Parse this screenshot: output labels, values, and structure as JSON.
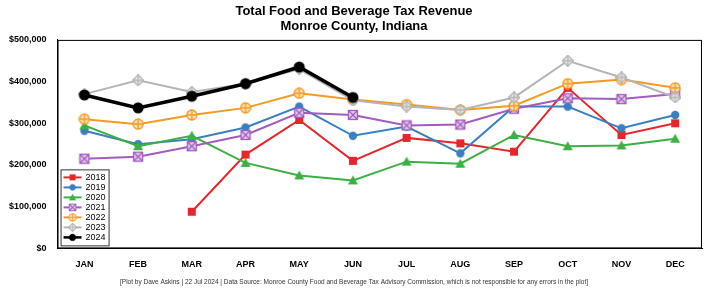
{
  "chart_data": {
    "type": "line",
    "title": "Total Food and Beverage Tax Revenue",
    "subtitle": "Monroe County, Indiana",
    "annotations": [
      "[Plot by Dave Askins | 22 Jul 2024 | Data Source: Monroe County Food and Beverage Tax Advisory Commission, which is not responsible for any errors in the plot]"
    ],
    "categories": [
      "JAN",
      "FEB",
      "MAR",
      "APR",
      "MAY",
      "JUN",
      "JUL",
      "AUG",
      "SEP",
      "OCT",
      "NOV",
      "DEC"
    ],
    "series": [
      {
        "name": "2018",
        "color": "#e8252a",
        "marker": "square",
        "values": [
          null,
          null,
          88000,
          225000,
          308000,
          210000,
          265000,
          252000,
          232000,
          385000,
          272000,
          300000
        ]
      },
      {
        "name": "2019",
        "color": "#3a7fc1",
        "marker": "circle",
        "values": [
          282000,
          250000,
          262000,
          290000,
          340000,
          270000,
          292000,
          228000,
          340000,
          340000,
          288000,
          320000
        ]
      },
      {
        "name": "2020",
        "color": "#3cb043",
        "marker": "triangle",
        "values": [
          295000,
          245000,
          270000,
          205000,
          175000,
          163000,
          208000,
          203000,
          272000,
          245000,
          247000,
          263000
        ]
      },
      {
        "name": "2021",
        "color": "#a35bbf",
        "marker": "square_x",
        "values": [
          215000,
          220000,
          245000,
          272000,
          325000,
          320000,
          295000,
          297000,
          335000,
          360000,
          358000,
          370000
        ]
      },
      {
        "name": "2022",
        "color": "#f39a21",
        "marker": "circle_plus",
        "values": [
          310000,
          298000,
          320000,
          337000,
          372000,
          357000,
          345000,
          332000,
          342000,
          395000,
          405000,
          385000
        ]
      },
      {
        "name": "2023",
        "color": "#b5b5b5",
        "marker": "diamond",
        "values": [
          370000,
          403000,
          375000,
          395000,
          430000,
          355000,
          340000,
          332000,
          362000,
          450000,
          410000,
          362000
        ]
      },
      {
        "name": "2024",
        "color": "#000000",
        "marker": "circle",
        "values": [
          368000,
          337000,
          365000,
          395000,
          435000,
          362000,
          null,
          null,
          null,
          null,
          null,
          null
        ]
      }
    ],
    "ylim": [
      0,
      500000
    ],
    "yticks": [
      {
        "value": 0,
        "label": "$0"
      },
      {
        "value": 100000,
        "label": "$100,000"
      },
      {
        "value": 200000,
        "label": "$200,000"
      },
      {
        "value": 300000,
        "label": "$300,000"
      },
      {
        "value": 400000,
        "label": "$400,000"
      },
      {
        "value": 500000,
        "label": "$500,000"
      }
    ],
    "grid": false,
    "legend": "lower left"
  }
}
